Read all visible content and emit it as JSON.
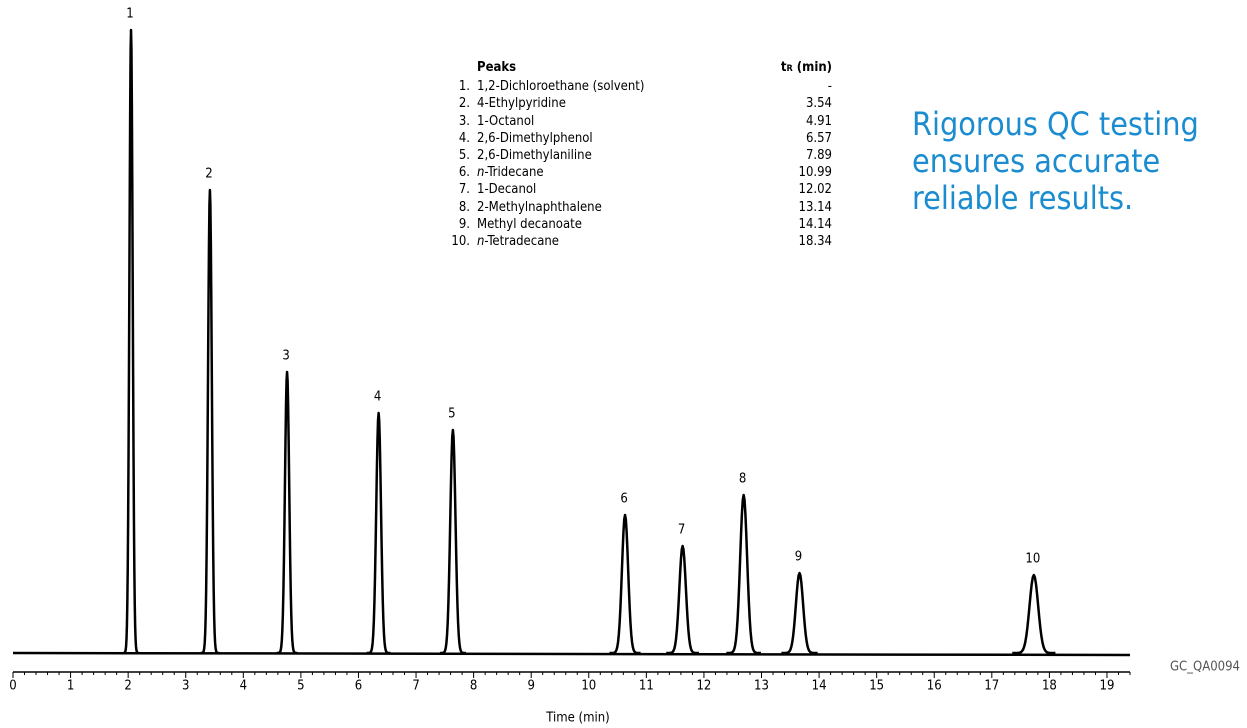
{
  "chart_data": {
    "type": "chromatogram",
    "x_label": "Time (min)",
    "xlim": [
      0,
      19.4
    ],
    "xticks": [
      0,
      1,
      2,
      3,
      4,
      5,
      6,
      7,
      8,
      9,
      10,
      11,
      12,
      13,
      14,
      15,
      16,
      17,
      18,
      19
    ],
    "xminorticks": [
      0.2,
      0.4,
      0.6,
      0.8,
      1.2,
      1.4,
      1.6,
      1.8,
      2.2,
      2.4,
      2.6,
      2.8,
      3.2,
      3.4,
      3.6,
      3.8,
      4.2,
      4.4,
      4.6,
      4.8,
      5.2,
      5.4,
      5.6,
      5.8,
      6.2,
      6.4,
      6.6,
      6.8,
      7.2,
      7.4,
      7.6,
      7.8,
      8.2,
      8.4,
      8.6,
      8.8,
      9.2,
      9.4,
      9.6,
      9.8,
      10.2,
      10.4,
      10.6,
      10.8,
      11.2,
      11.4,
      11.6,
      11.8,
      12.2,
      12.4,
      12.6,
      12.8,
      13.2,
      13.4,
      13.6,
      13.8,
      14.2,
      14.4,
      14.6,
      14.8,
      15.2,
      15.4,
      15.6,
      15.8,
      16.2,
      16.4,
      16.6,
      16.8,
      17.2,
      17.4,
      17.6,
      17.8,
      18.2,
      18.4,
      18.6,
      18.8,
      19.2,
      19.4
    ],
    "ylim": [
      0,
      623
    ],
    "color": "#000000",
    "peaks": {
      "labels": [
        "1",
        "2",
        "3",
        "4",
        "5",
        "6",
        "7",
        "8",
        "9",
        "10"
      ],
      "x": [
        2.05,
        3.42,
        4.76,
        6.35,
        7.64,
        10.63,
        11.63,
        12.69,
        13.66,
        17.73
      ],
      "values": [
        623,
        463,
        281,
        240,
        223,
        138,
        107,
        158,
        80,
        78
      ]
    },
    "legend": {
      "title": "Peaks",
      "time_header": "tR (min)",
      "rows": [
        [
          "1.",
          "1,2-Dichloroethane (solvent)",
          "-"
        ],
        [
          "2.",
          "4-Ethylpyridine",
          "3.54"
        ],
        [
          "3.",
          "1-Octanol",
          "4.91"
        ],
        [
          "4.",
          "2,6-Dimethylphenol",
          "6.57"
        ],
        [
          "5.",
          "2,6-Dimethylaniline",
          "7.89"
        ],
        [
          "6.",
          "n-Tridecane",
          "10.99"
        ],
        [
          "7.",
          "1-Decanol",
          "12.02"
        ],
        [
          "8.",
          "2-Methylnaphthalene",
          "13.14"
        ],
        [
          "9.",
          "Methyl decanoate",
          "14.14"
        ],
        [
          "10.",
          "n-Tetradecane",
          "18.34"
        ]
      ]
    },
    "slogan": [
      "Rigorous QC testing",
      "ensures accurate",
      "reliable results."
    ],
    "code": "GC_QA0094"
  }
}
